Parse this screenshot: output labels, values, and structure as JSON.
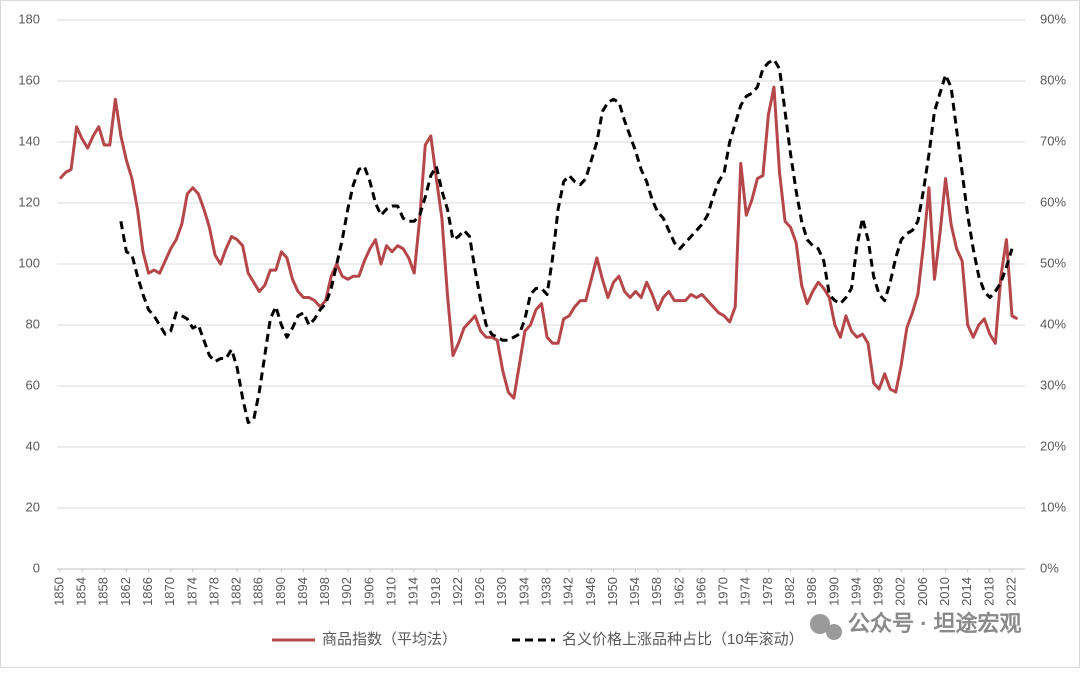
{
  "chart_data": {
    "type": "line",
    "x": [
      1850,
      1851,
      1852,
      1853,
      1854,
      1855,
      1856,
      1857,
      1858,
      1859,
      1860,
      1861,
      1862,
      1863,
      1864,
      1865,
      1866,
      1867,
      1868,
      1869,
      1870,
      1871,
      1872,
      1873,
      1874,
      1875,
      1876,
      1877,
      1878,
      1879,
      1880,
      1881,
      1882,
      1883,
      1884,
      1885,
      1886,
      1887,
      1888,
      1889,
      1890,
      1891,
      1892,
      1893,
      1894,
      1895,
      1896,
      1897,
      1898,
      1899,
      1900,
      1901,
      1902,
      1903,
      1904,
      1905,
      1906,
      1907,
      1908,
      1909,
      1910,
      1911,
      1912,
      1913,
      1914,
      1915,
      1916,
      1917,
      1918,
      1919,
      1920,
      1921,
      1922,
      1923,
      1924,
      1925,
      1926,
      1927,
      1928,
      1929,
      1930,
      1931,
      1932,
      1933,
      1934,
      1935,
      1936,
      1937,
      1938,
      1939,
      1940,
      1941,
      1942,
      1943,
      1944,
      1945,
      1946,
      1947,
      1948,
      1949,
      1950,
      1951,
      1952,
      1953,
      1954,
      1955,
      1956,
      1957,
      1958,
      1959,
      1960,
      1961,
      1962,
      1963,
      1964,
      1965,
      1966,
      1967,
      1968,
      1969,
      1970,
      1971,
      1972,
      1973,
      1974,
      1975,
      1976,
      1977,
      1978,
      1979,
      1980,
      1981,
      1982,
      1983,
      1984,
      1985,
      1986,
      1987,
      1988,
      1989,
      1990,
      1991,
      1992,
      1993,
      1994,
      1995,
      1996,
      1997,
      1998,
      1999,
      2000,
      2001,
      2002,
      2003,
      2004,
      2005,
      2006,
      2007,
      2008,
      2009,
      2010,
      2011,
      2012,
      2013,
      2014,
      2015,
      2016,
      2017,
      2018,
      2019,
      2020,
      2021,
      2022,
      2023
    ],
    "series": [
      {
        "name": "商品指数（平均法）",
        "color": "#b5474a",
        "dashed": false,
        "values": [
          128,
          130,
          131,
          145,
          141,
          138,
          142,
          145,
          139,
          139,
          154,
          142,
          134,
          128,
          118,
          104,
          97,
          98,
          97,
          101,
          105,
          108,
          113,
          123,
          125,
          123,
          118,
          112,
          103,
          100,
          105,
          109,
          108,
          106,
          97,
          94,
          91,
          93,
          98,
          98,
          104,
          102,
          95,
          91,
          89,
          89,
          88,
          86,
          88,
          96,
          100,
          96,
          95,
          96,
          96,
          101,
          105,
          108,
          100,
          106,
          104,
          106,
          105,
          102,
          97,
          115,
          139,
          142,
          128,
          115,
          90,
          70,
          74,
          79,
          81,
          83,
          78,
          76,
          76,
          75,
          65,
          58,
          56,
          67,
          78,
          80,
          85,
          87,
          76,
          74,
          74,
          82,
          83,
          86,
          88,
          88,
          95,
          102,
          95,
          89,
          94,
          96,
          91,
          89,
          91,
          89,
          94,
          90,
          85,
          89,
          91,
          88,
          88,
          88,
          90,
          89,
          90,
          88,
          86,
          84,
          83,
          81,
          86,
          133,
          116,
          121,
          128,
          129,
          149,
          158,
          130,
          114,
          112,
          107,
          93,
          87,
          91,
          94,
          92,
          89,
          80,
          76,
          83,
          78,
          76,
          77,
          74,
          61,
          59,
          64,
          59,
          58,
          67,
          79,
          84,
          90,
          106,
          125,
          95,
          110,
          128,
          113,
          105,
          101,
          80,
          76,
          80,
          82,
          77,
          74,
          96,
          108,
          83,
          82
        ]
      },
      {
        "name": "名义价格上涨品种占比（10年滚动）",
        "color": "#000000",
        "dashed": true,
        "axis": "y2",
        "values": [
          null,
          null,
          null,
          null,
          null,
          null,
          null,
          null,
          null,
          null,
          null,
          57,
          52,
          51.5,
          48,
          45,
          42.5,
          41.5,
          40,
          38.5,
          39,
          42,
          41.5,
          41,
          39.5,
          40,
          37.5,
          35,
          34,
          34.5,
          34.5,
          36,
          33,
          28,
          24,
          24.5,
          29,
          35,
          41,
          43,
          40,
          38,
          39.5,
          41.5,
          42,
          40,
          41,
          42.5,
          43.5,
          46,
          50,
          54,
          59,
          63,
          65.5,
          66,
          63.5,
          60,
          58,
          59,
          59.5,
          59.5,
          57.5,
          57,
          57,
          58,
          61,
          64.5,
          66,
          62,
          59,
          54,
          54.5,
          55.5,
          54.5,
          49,
          44,
          40,
          38.5,
          38,
          37.5,
          37.5,
          38,
          38.5,
          41,
          45,
          46,
          46,
          45,
          51,
          59,
          63.5,
          64.5,
          63.5,
          63,
          64,
          67,
          70,
          75,
          76.5,
          77,
          76.5,
          73.5,
          71,
          68.5,
          65.5,
          63.5,
          60.5,
          58.5,
          57.5,
          55.5,
          53.5,
          52.5,
          53.5,
          54.5,
          55.5,
          56.5,
          58,
          61,
          63.5,
          65,
          70,
          73,
          76,
          77.5,
          78,
          79,
          82,
          83,
          83.5,
          82,
          75,
          68,
          62,
          57,
          54,
          53,
          52.5,
          50.5,
          45,
          44,
          43.5,
          44.5,
          46,
          53,
          57.5,
          54,
          48,
          45,
          44,
          47,
          51,
          54,
          55,
          55.5,
          57,
          62,
          68,
          75,
          78,
          81,
          79,
          72,
          65,
          58,
          52.5,
          48,
          45.5,
          44.5,
          45.5,
          47,
          49.5,
          52.5,
          null
        ]
      }
    ],
    "xlim": [
      1850,
      2023
    ],
    "xticks": [
      1850,
      1854,
      1858,
      1862,
      1866,
      1870,
      1874,
      1878,
      1882,
      1886,
      1890,
      1894,
      1898,
      1902,
      1906,
      1910,
      1914,
      1918,
      1922,
      1926,
      1930,
      1934,
      1938,
      1942,
      1946,
      1950,
      1954,
      1958,
      1962,
      1966,
      1970,
      1974,
      1978,
      1982,
      1986,
      1990,
      1994,
      1998,
      2002,
      2006,
      2010,
      2014,
      2018,
      2022
    ],
    "ylim": [
      0,
      180
    ],
    "yticks": [
      0,
      20,
      40,
      60,
      80,
      100,
      120,
      140,
      160,
      180
    ],
    "y2lim": [
      0,
      90
    ],
    "y2ticks": [
      {
        "value": 0,
        "label": "0%"
      },
      {
        "value": 10,
        "label": "10%"
      },
      {
        "value": 20,
        "label": "20%"
      },
      {
        "value": 30,
        "label": "30%"
      },
      {
        "value": 40,
        "label": "40%"
      },
      {
        "value": 50,
        "label": "50%"
      },
      {
        "value": 60,
        "label": "60%"
      },
      {
        "value": 70,
        "label": "70%"
      },
      {
        "value": 80,
        "label": "80%"
      },
      {
        "value": 90,
        "label": "90%"
      }
    ],
    "grid": true,
    "legend": "bottom",
    "watermark": "公众号 · 坦途宏观"
  }
}
